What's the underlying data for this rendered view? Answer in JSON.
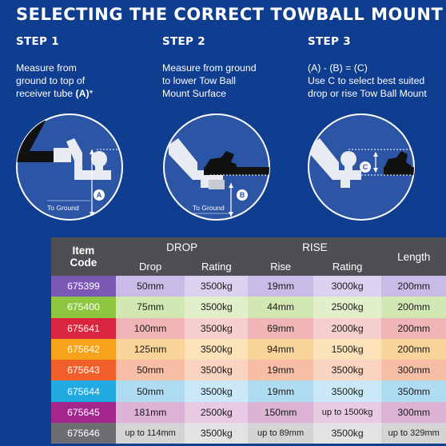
{
  "title": "SELECTING THE CORRECT TOWBALL MOUNT",
  "steps": [
    {
      "head": "STEP 1",
      "lines": [
        "Measure from",
        "ground to top of",
        "receiver tube"
      ],
      "emph": "(A)",
      "suffix": "*",
      "label_ground": "To Ground",
      "badge": "A"
    },
    {
      "head": "STEP 2",
      "lines": [
        "Measure from ground",
        "to lower Tow Ball",
        "Mount Surface"
      ],
      "label_ground": "To Ground",
      "badge": "B"
    },
    {
      "head": "STEP 3",
      "formula": "(A) - (B) = (C)",
      "lines": [
        "Use C to select best suited",
        "drop or rise Tow Ball Mount"
      ],
      "badge": "C"
    }
  ],
  "table": {
    "headers": {
      "item": "Item",
      "code": "Code",
      "drop": "DROP",
      "rise": "RISE",
      "length": "Length",
      "drop_sub": "Drop",
      "drop_rating": "Rating",
      "rise_sub": "Rise",
      "rise_rating": "Rating"
    },
    "rows": [
      {
        "code": "675399",
        "drop": "50mm",
        "drop_rating": "3500kg",
        "rise": "19mm",
        "rise_rating": "3000kg",
        "length": "200mm",
        "color": "#7b58b6",
        "light": "#c8bce6",
        "light2": "#dad2ef"
      },
      {
        "code": "675400",
        "drop": "75mm",
        "drop_rating": "3500kg",
        "rise": "44mm",
        "rise_rating": "2500kg",
        "length": "200mm",
        "color": "#8ec63f",
        "light": "#d2e8b2",
        "light2": "#e1f0cb"
      },
      {
        "code": "675641",
        "drop": "100mm",
        "drop_rating": "3500kg",
        "rise": "69mm",
        "rise_rating": "2000kg",
        "length": "200mm",
        "color": "#d7263d",
        "light": "#f0b5b7",
        "light2": "#f6cfcf"
      },
      {
        "code": "675642",
        "drop": "125mm",
        "drop_rating": "3500kg",
        "rise": "94mm",
        "rise_rating": "1500kg",
        "length": "200mm",
        "color": "#f6a21b",
        "light": "#f9d49a",
        "light2": "#fbe2b9"
      },
      {
        "code": "675643",
        "drop": "50mm",
        "drop_rating": "3500kg",
        "rise": "19mm",
        "rise_rating": "3500kg",
        "length": "300mm",
        "color": "#f1602b",
        "light": "#f7bea5",
        "light2": "#fad3c1"
      },
      {
        "code": "675644",
        "drop": "50mm",
        "drop_rating": "3500kg",
        "rise": "19mm",
        "rise_rating": "3500kg",
        "length": "350mm",
        "color": "#22a9e1",
        "light": "#b0dcf1",
        "light2": "#cbe8f6"
      },
      {
        "code": "675645",
        "drop": "181mm",
        "drop_rating": "2500kg",
        "rise": "150mm",
        "rise_rating": "up to 1500kg",
        "length": "300mm",
        "color": "#a3268e",
        "light": "#dcb2d5",
        "light2": "#e8cbe3"
      },
      {
        "code": "675646",
        "drop": "up to 114mm",
        "drop_rating": "3500kg",
        "rise": "up to 89mm",
        "rise_rating": "3500kg",
        "length": "up to 329mm",
        "color": "#6d6e71",
        "light": "#d4d4d6",
        "light2": "#e3e3e5"
      }
    ]
  }
}
